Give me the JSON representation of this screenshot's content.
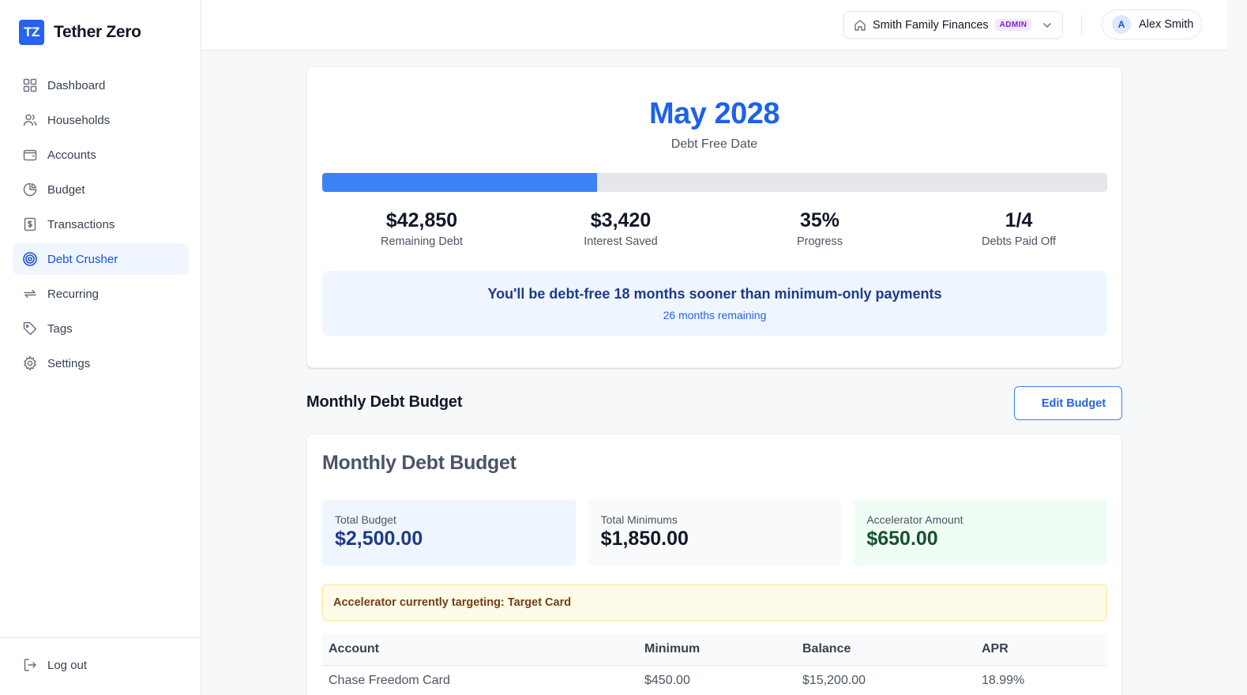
{
  "brand": {
    "logo_text": "TZ",
    "name": "Tether Zero"
  },
  "sidebar": {
    "items": [
      {
        "label": "Dashboard",
        "icon": "grid-icon"
      },
      {
        "label": "Households",
        "icon": "users-icon"
      },
      {
        "label": "Accounts",
        "icon": "wallet-icon"
      },
      {
        "label": "Budget",
        "icon": "pie-chart-icon"
      },
      {
        "label": "Transactions",
        "icon": "receipt-icon"
      },
      {
        "label": "Debt Crusher",
        "icon": "target-icon",
        "active": true
      },
      {
        "label": "Recurring",
        "icon": "repeat-icon"
      },
      {
        "label": "Tags",
        "icon": "tag-icon"
      },
      {
        "label": "Settings",
        "icon": "gear-icon"
      }
    ],
    "logout_label": "Log out"
  },
  "header": {
    "household_name": "Smith Family Finances",
    "role_badge": "ADMIN",
    "avatar_initial": "A",
    "user_name": "Alex Smith"
  },
  "hero": {
    "debt_free_date": "May 2028",
    "debt_free_label": "Debt Free Date",
    "progress_percent": 35,
    "stats": [
      {
        "value": "$42,850",
        "label": "Remaining Debt"
      },
      {
        "value": "$3,420",
        "label": "Interest Saved"
      },
      {
        "value": "35%",
        "label": "Progress"
      },
      {
        "value": "1/4",
        "label": "Debts Paid Off"
      }
    ],
    "sooner_message": "You'll be debt-free 18 months sooner than minimum-only payments",
    "months_remaining": "26 months remaining"
  },
  "section": {
    "title": "Monthly Debt Budget",
    "edit_label": "Edit Budget"
  },
  "budget": {
    "title": "Monthly Debt Budget",
    "summary": [
      {
        "label": "Total Budget",
        "value": "$2,500.00"
      },
      {
        "label": "Total Minimums",
        "value": "$1,850.00"
      },
      {
        "label": "Accelerator Amount",
        "value": "$650.00"
      }
    ],
    "target_message": "Accelerator currently targeting: Target Card",
    "table": {
      "columns": [
        "Account",
        "Minimum",
        "Balance",
        "APR"
      ],
      "rows": [
        [
          "Chase Freedom Card",
          "$450.00",
          "$15,200.00",
          "18.99%"
        ]
      ]
    }
  },
  "colors": {
    "accent": "#2563eb",
    "active_nav_bg": "#eff6ff",
    "progress_fill": "#3b82f6",
    "admin_badge": "#7e22ce"
  }
}
